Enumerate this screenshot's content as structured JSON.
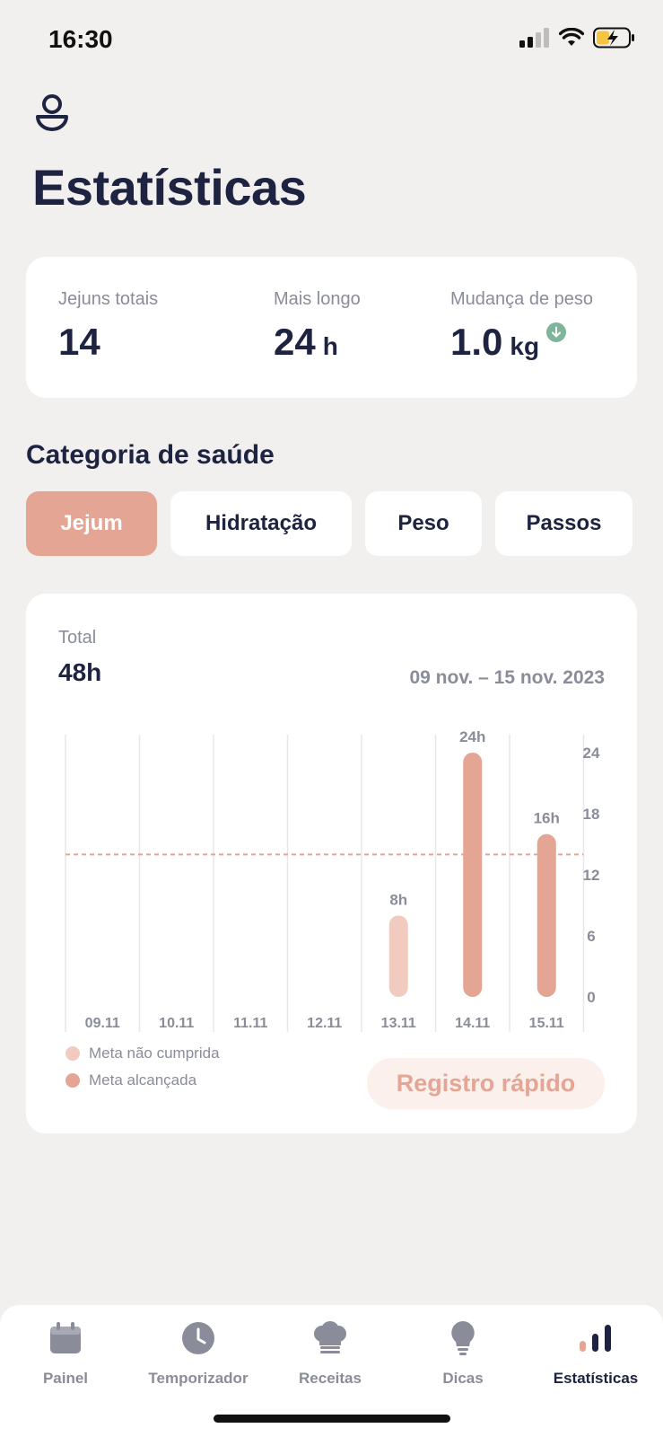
{
  "status_bar": {
    "time": "16:30"
  },
  "header": {
    "title": "Estatísticas"
  },
  "summary": {
    "stats": [
      {
        "label": "Jejuns totais",
        "value": "14",
        "unit": ""
      },
      {
        "label": "Mais longo",
        "value": "24",
        "unit": "h"
      },
      {
        "label": "Mudança de peso",
        "value": "1.0",
        "unit": "kg",
        "trend": "down"
      }
    ]
  },
  "health_category": {
    "title": "Categoria de saúde",
    "tabs": [
      {
        "label": "Jejum",
        "active": true
      },
      {
        "label": "Hidratação",
        "active": false
      },
      {
        "label": "Peso",
        "active": false
      },
      {
        "label": "Passos",
        "active": false
      }
    ]
  },
  "chart_card": {
    "total_label": "Total",
    "total_value": "48h",
    "date_range": "09 nov. – 15 nov. 2023",
    "legend": [
      {
        "label": "Meta não cumprida",
        "color": "#f2cbc0"
      },
      {
        "label": "Meta alcançada",
        "color": "#e4a595"
      }
    ],
    "quick_log_label": "Registro rápido"
  },
  "chart_data": {
    "type": "bar",
    "categories": [
      "09.11",
      "10.11",
      "11.11",
      "12.11",
      "13.11",
      "14.11",
      "15.11"
    ],
    "values": [
      0,
      0,
      0,
      0,
      8,
      24,
      16
    ],
    "data_labels": [
      "",
      "",
      "",
      "",
      "8h",
      "24h",
      "16h"
    ],
    "goal_met": [
      false,
      false,
      false,
      false,
      false,
      true,
      true
    ],
    "goal_line": 14,
    "y_ticks": [
      0,
      6,
      12,
      18,
      24
    ],
    "ylim": [
      0,
      24
    ],
    "y_axis_position": "right",
    "grid": "vertical",
    "colors": {
      "goal_not_met": "#f2cbc0",
      "goal_met": "#e4a595",
      "goal_line": "#e4a595"
    }
  },
  "tabbar": {
    "items": [
      {
        "label": "Painel",
        "icon": "calendar-icon",
        "active": false
      },
      {
        "label": "Temporizador",
        "icon": "clock-icon",
        "active": false
      },
      {
        "label": "Receitas",
        "icon": "chef-hat-icon",
        "active": false
      },
      {
        "label": "Dicas",
        "icon": "lightbulb-icon",
        "active": false
      },
      {
        "label": "Estatísticas",
        "icon": "bar-chart-icon",
        "active": true
      }
    ]
  }
}
